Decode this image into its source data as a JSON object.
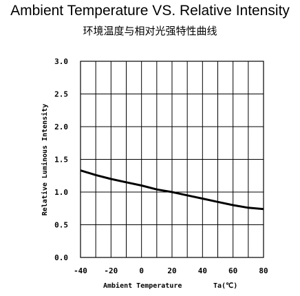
{
  "chart_data": {
    "type": "line",
    "title": "Ambient Temperature VS. Relative Intensity",
    "subtitle": "环境温度与相对光强特性曲线",
    "xlabel": "Ambient Temperature",
    "xunit": "Ta(℃)",
    "ylabel": "Relative Luminous Intensity",
    "xlim": [
      -40,
      80
    ],
    "ylim": [
      0.0,
      3.0
    ],
    "x_ticks": [
      "-40",
      "-20",
      "0",
      "20",
      "40",
      "60",
      "80"
    ],
    "y_ticks": [
      "0.0",
      "0.5",
      "1.0",
      "1.5",
      "2.0",
      "2.5",
      "3.0"
    ],
    "grid": true,
    "series": [
      {
        "x": [
          -40,
          -30,
          -20,
          -10,
          0,
          10,
          20,
          30,
          40,
          50,
          60,
          70,
          80
        ],
        "values": [
          1.33,
          1.26,
          1.2,
          1.15,
          1.1,
          1.04,
          1.0,
          0.95,
          0.9,
          0.85,
          0.8,
          0.76,
          0.74
        ]
      }
    ]
  }
}
